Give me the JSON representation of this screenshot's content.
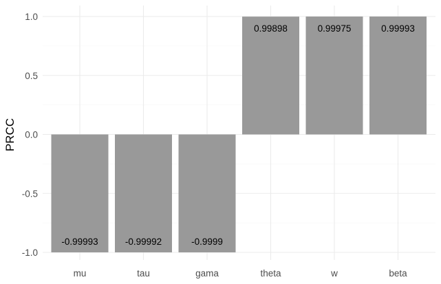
{
  "chart_data": {
    "type": "bar",
    "categories": [
      "mu",
      "tau",
      "gama",
      "theta",
      "w",
      "beta"
    ],
    "values": [
      -0.99993,
      -0.99992,
      -0.9999,
      0.99898,
      0.99975,
      0.99993
    ],
    "data_labels": [
      "-0.99993",
      "-0.99992",
      "-0.9999",
      "0.99898",
      "0.99975",
      "0.99993"
    ],
    "ylabel": "PRCC",
    "xlabel": "",
    "ylim": [
      -1.0,
      1.0
    ],
    "yticks": [
      -1.0,
      -0.5,
      0.0,
      0.5,
      1.0
    ],
    "ytick_labels": [
      "-1.0",
      "-0.5",
      "0.0",
      "0.5",
      "1.0"
    ],
    "grid": true,
    "bar_color": "#999999"
  }
}
